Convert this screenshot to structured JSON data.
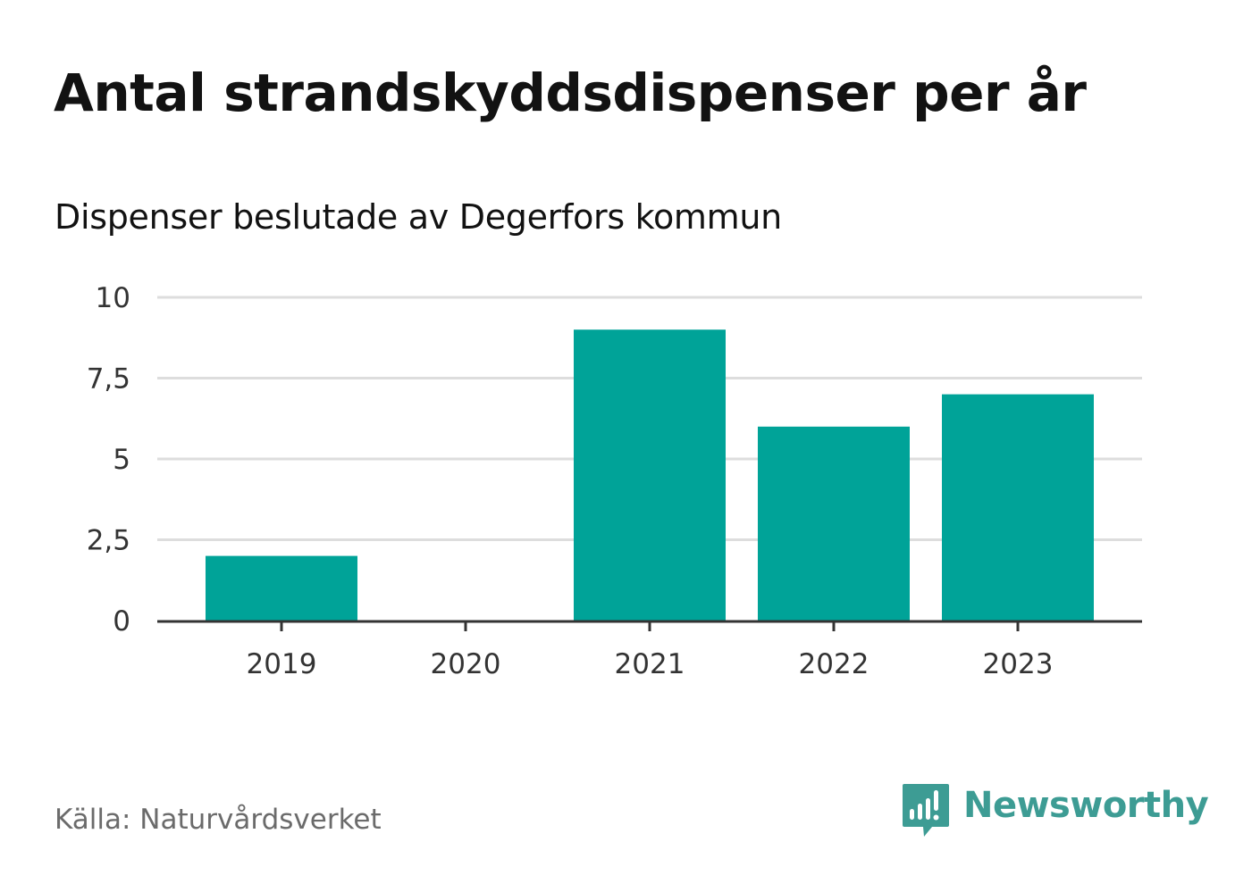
{
  "title": "Antal strandskyddsdispenser per år",
  "subtitle": "Dispenser beslutade av Degerfors kommun",
  "source": "Källa: Naturvårdsverket",
  "brand": {
    "name": "Newsworthy",
    "icon": "newsworthy-logo-icon",
    "color": "#3d9c94"
  },
  "colors": {
    "bar": "#00a398",
    "grid": "#dddddd",
    "axis": "#333333"
  },
  "chart_data": {
    "type": "bar",
    "title": "Antal strandskyddsdispenser per år",
    "subtitle": "Dispenser beslutade av Degerfors kommun",
    "categories": [
      "2019",
      "2020",
      "2021",
      "2022",
      "2023"
    ],
    "values": [
      2,
      0,
      9,
      6,
      7
    ],
    "yticks": [
      0,
      2.5,
      5,
      7.5,
      10
    ],
    "ytick_labels": [
      "0",
      "2,5",
      "5",
      "7,5",
      "10"
    ],
    "ylim": [
      0,
      10
    ],
    "xlabel": "",
    "ylabel": "",
    "grid": true,
    "legend": "none"
  }
}
